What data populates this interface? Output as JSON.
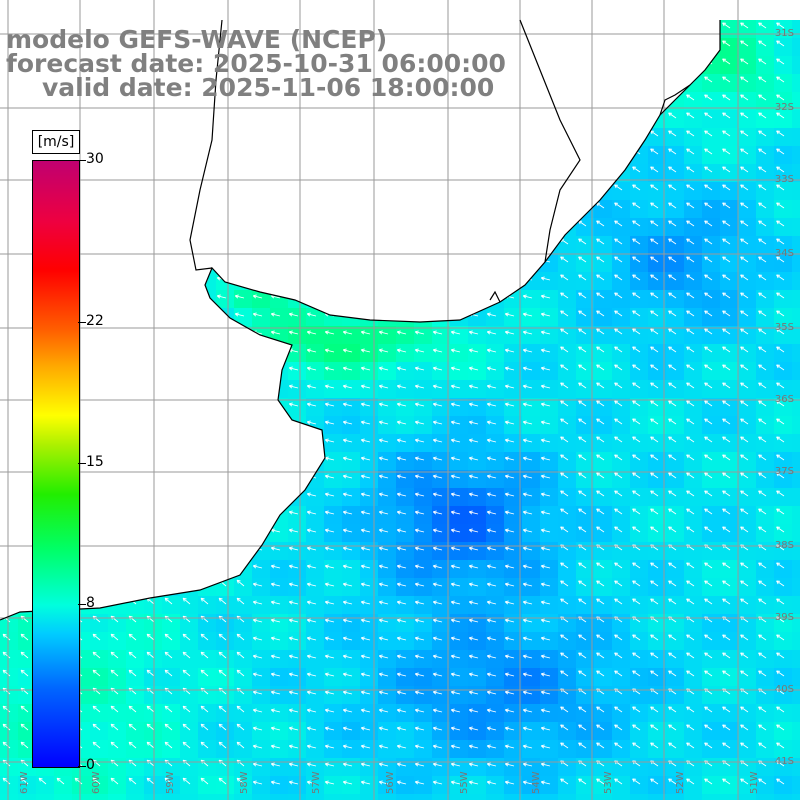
{
  "title": {
    "line1": "modelo GEFS-WAVE (NCEP)",
    "line2": "forecast date: 2025-10-31 06:00:00",
    "line3": "valid date: 2025-11-06 18:00:00"
  },
  "colorbar": {
    "unit": "[m/s]",
    "ticks": [
      "30",
      "22",
      "15",
      "8",
      "0"
    ],
    "tick_values": [
      30,
      22,
      15,
      8,
      0
    ],
    "min": 0,
    "max": 30
  },
  "map": {
    "lon_labels": [
      "61W",
      "60W",
      "59W",
      "58W",
      "57W",
      "56W",
      "55W",
      "54W",
      "53W",
      "52W",
      "51W"
    ],
    "lat_labels": [
      "31S",
      "32S",
      "33S",
      "34S",
      "35S",
      "36S",
      "37S",
      "38S",
      "39S",
      "40S",
      "41S"
    ],
    "land_color": "#ffffff",
    "coast_color": "#000000",
    "grid_color": "#9a9a9a",
    "arrow_color": "#ffffff",
    "wind_field_note_icon": "wind-arrow-icon"
  }
}
